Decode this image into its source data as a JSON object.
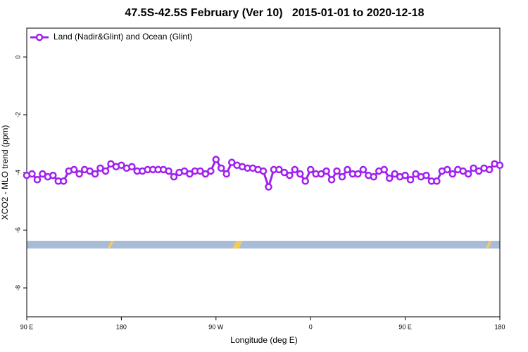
{
  "chart_data": {
    "type": "line",
    "title": "47.5S-42.5S February (Ver 10)   2015-01-01 to 2020-12-18",
    "x_label": "Longitude (deg E)",
    "y_label": "XCO2 - MLO trend (ppm)",
    "xlim": [
      90,
      540
    ],
    "ylim": [
      -9,
      1
    ],
    "xticks": [
      {
        "value": 90,
        "label": "90 E"
      },
      180,
      {
        "value": 270,
        "label": "90 W"
      },
      {
        "value": 360,
        "label": "0"
      },
      {
        "value": 450,
        "label": "90 E"
      },
      {
        "value": 540,
        "label": "180"
      }
    ],
    "yticks": [
      0,
      -2,
      -4,
      -6,
      -8
    ],
    "legend": "top-left",
    "series": [
      {
        "name": "Land (Nadir&Glint) and Ocean (Glint)",
        "color": "#a020f0",
        "x": [
          90,
          95,
          100,
          105,
          110,
          115,
          120,
          125,
          130,
          135,
          140,
          145,
          150,
          155,
          160,
          165,
          170,
          175,
          180,
          185,
          190,
          195,
          200,
          205,
          210,
          215,
          220,
          225,
          230,
          235,
          240,
          245,
          250,
          255,
          260,
          265,
          270,
          275,
          280,
          285,
          290,
          295,
          300,
          305,
          310,
          315,
          320,
          325,
          330,
          335,
          340,
          345,
          350,
          355,
          360,
          365,
          370,
          375,
          380,
          385,
          390,
          395,
          400,
          405,
          410,
          415,
          420,
          425,
          430,
          435,
          440,
          445,
          450,
          455,
          460,
          465,
          470,
          475,
          480,
          485,
          490,
          495,
          500,
          505,
          510,
          515,
          520,
          525,
          530,
          535,
          540
        ],
        "values": [
          -4.1,
          -4.05,
          -4.25,
          -4.05,
          -4.15,
          -4.1,
          -4.3,
          -4.3,
          -3.95,
          -3.9,
          -4.05,
          -3.9,
          -3.95,
          -4.05,
          -3.85,
          -3.95,
          -3.7,
          -3.8,
          -3.75,
          -3.85,
          -3.8,
          -3.95,
          -3.95,
          -3.9,
          -3.9,
          -3.9,
          -3.9,
          -3.95,
          -4.15,
          -4.0,
          -3.95,
          -4.05,
          -3.95,
          -3.95,
          -4.05,
          -3.95,
          -3.55,
          -3.85,
          -4.05,
          -3.65,
          -3.75,
          -3.8,
          -3.85,
          -3.85,
          -3.9,
          -3.95,
          -4.5,
          -3.9,
          -3.9,
          -4.0,
          -4.1,
          -3.9,
          -4.05,
          -4.3,
          -3.9,
          -4.05,
          -4.05,
          -3.95,
          -4.25,
          -3.95,
          -4.15,
          -3.9,
          -4.05,
          -4.05,
          -3.9,
          -4.1,
          -4.15,
          -3.95,
          -3.9,
          -4.2,
          -4.05,
          -4.15,
          -4.1,
          -4.25,
          -4.05,
          -4.15,
          -4.1,
          -4.3,
          -4.3,
          -3.95,
          -3.9,
          -4.05,
          -3.9,
          -3.95,
          -4.05,
          -3.85,
          -3.95,
          -3.85,
          -3.9,
          -3.7,
          -3.75
        ]
      }
    ]
  }
}
